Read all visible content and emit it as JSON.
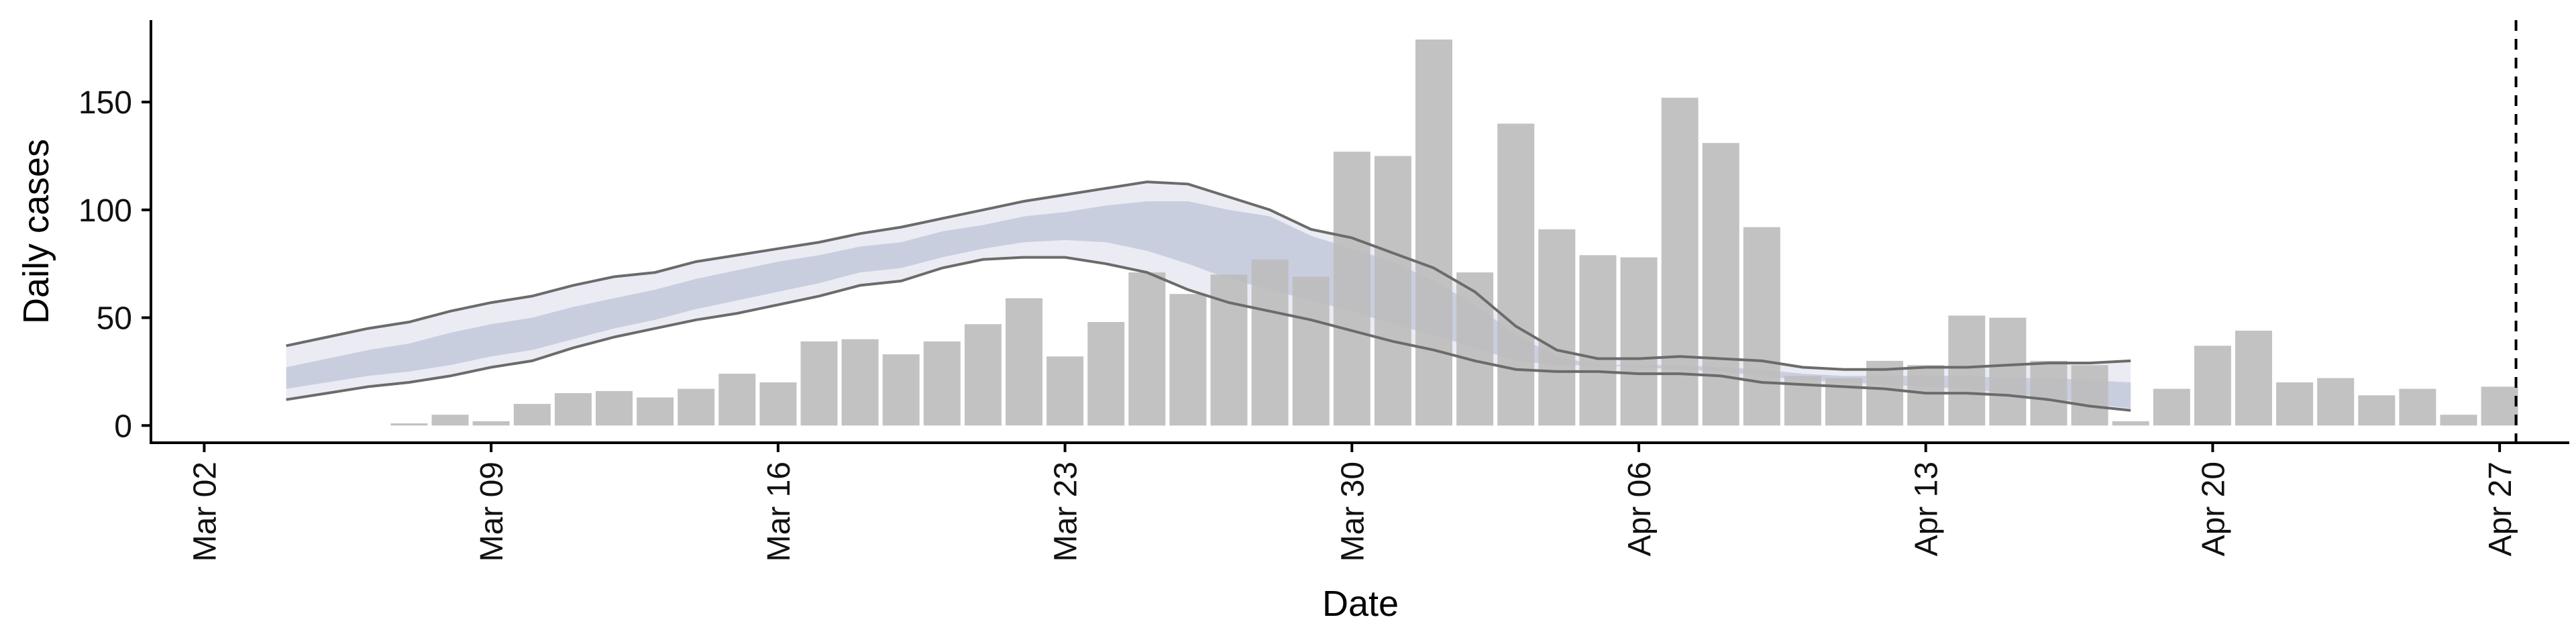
{
  "chart_data": {
    "type": "bar",
    "xlabel": "Date",
    "ylabel": "Daily cases",
    "ylim": [
      -8,
      188
    ],
    "x_start_date": "2020-03-01",
    "x_range_days": [
      -0.3,
      58.7
    ],
    "y_ticks": [
      0,
      50,
      100,
      150
    ],
    "x_ticks": [
      {
        "day": 1,
        "label": "Mar 02"
      },
      {
        "day": 8,
        "label": "Mar 09"
      },
      {
        "day": 15,
        "label": "Mar 16"
      },
      {
        "day": 22,
        "label": "Mar 23"
      },
      {
        "day": 29,
        "label": "Mar 30"
      },
      {
        "day": 36,
        "label": "Apr 06"
      },
      {
        "day": 43,
        "label": "Apr 13"
      },
      {
        "day": 50,
        "label": "Apr 20"
      },
      {
        "day": 57,
        "label": "Apr 27"
      }
    ],
    "grid": false,
    "legend": "none",
    "vline_day": 57.4,
    "bars": {
      "name": "Daily cases",
      "color": "#bdbdbd",
      "start_day": 6,
      "values": [
        1,
        5,
        2,
        10,
        15,
        16,
        13,
        17,
        24,
        20,
        39,
        40,
        33,
        39,
        47,
        59,
        32,
        48,
        71,
        61,
        70,
        77,
        69,
        127,
        125,
        179,
        71,
        140,
        91,
        79,
        78,
        152,
        131,
        92,
        23,
        22,
        30,
        28,
        51,
        50,
        30,
        28,
        2,
        17,
        37,
        44,
        20,
        22,
        14,
        17,
        5,
        18
      ]
    },
    "estimate": {
      "start_day": 3,
      "outer_color": "#e7e8f1",
      "inner_color": "#c3c9db",
      "line_color": "#6b6b6b",
      "upper_90": [
        37,
        41,
        45,
        48,
        53,
        57,
        60,
        65,
        69,
        71,
        76,
        79,
        82,
        85,
        89,
        92,
        96,
        100,
        104,
        107,
        110,
        113,
        112,
        106,
        100,
        91,
        87,
        80,
        73,
        62,
        46,
        35,
        31,
        31,
        32,
        31,
        30,
        27,
        26,
        26,
        27,
        27,
        28,
        29,
        29,
        30
      ],
      "lower_90": [
        12,
        15,
        18,
        20,
        23,
        27,
        30,
        36,
        41,
        45,
        49,
        52,
        56,
        60,
        65,
        67,
        73,
        77,
        78,
        78,
        75,
        71,
        63,
        57,
        53,
        49,
        44,
        39,
        35,
        30,
        26,
        25,
        25,
        24,
        24,
        23,
        20,
        19,
        18,
        17,
        15,
        15,
        14,
        12,
        9,
        7
      ],
      "upper_50": [
        27,
        31,
        35,
        38,
        43,
        47,
        50,
        55,
        59,
        63,
        68,
        72,
        76,
        79,
        83,
        85,
        90,
        93,
        97,
        99,
        102,
        104,
        104,
        100,
        97,
        88,
        82,
        76,
        67,
        56,
        42,
        32,
        28,
        28,
        28,
        27,
        26,
        24,
        23,
        23,
        23,
        23,
        22,
        22,
        21,
        20
      ],
      "lower_50": [
        17,
        20,
        23,
        25,
        28,
        32,
        35,
        40,
        45,
        49,
        54,
        58,
        62,
        66,
        71,
        73,
        78,
        82,
        85,
        86,
        85,
        81,
        75,
        68,
        63,
        58,
        53,
        47,
        42,
        36,
        30,
        28,
        28,
        27,
        26,
        25,
        23,
        21,
        20,
        19,
        18,
        17,
        15,
        13,
        10,
        8
      ]
    }
  }
}
